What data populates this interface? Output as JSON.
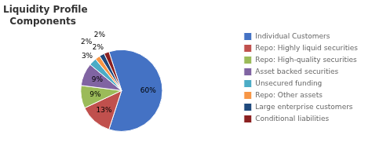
{
  "chart_data": {
    "type": "pie",
    "title": "Liquidity Profile\n  Components",
    "categories": [
      "Individual Customers",
      "Repo: Highly liquid securities",
      "Repo: High-quality securities",
      "Asset backed securities",
      "Unsecured funding",
      "Repo: Other assets",
      "Large enterprise customers",
      "Conditional liabilities"
    ],
    "values": [
      60,
      13,
      9,
      9,
      3,
      2,
      2,
      2
    ],
    "value_labels": [
      "60%",
      "13%",
      "9%",
      "9%",
      "3%",
      "2%",
      "2%",
      "2%"
    ],
    "colors": [
      "#4472C4",
      "#C0504D",
      "#9BBB59",
      "#8064A2",
      "#4BACC6",
      "#F79646",
      "#1F497D",
      "#8B2020"
    ],
    "data_labels": true,
    "legend": "right"
  }
}
